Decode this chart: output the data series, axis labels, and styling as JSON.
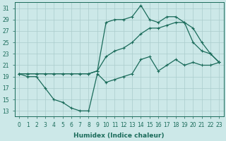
{
  "xlabel": "Humidex (Indice chaleur)",
  "background_color": "#cce8e8",
  "grid_color": "#aacccc",
  "line_color": "#1a6b5a",
  "xlim": [
    -0.5,
    23.5
  ],
  "ylim": [
    12,
    32
  ],
  "xticks": [
    0,
    1,
    2,
    3,
    4,
    5,
    6,
    7,
    8,
    9,
    10,
    11,
    12,
    13,
    14,
    15,
    16,
    17,
    18,
    19,
    20,
    21,
    22,
    23
  ],
  "yticks": [
    13,
    15,
    17,
    19,
    21,
    23,
    25,
    27,
    29,
    31
  ],
  "line1_x": [
    0,
    1,
    2,
    3,
    4,
    5,
    6,
    7,
    8,
    9,
    10,
    11,
    12,
    13,
    14,
    15,
    16,
    17,
    18,
    19,
    20,
    21,
    22,
    23
  ],
  "line1_y": [
    19.5,
    19.0,
    19.0,
    17.0,
    15.0,
    14.5,
    13.5,
    13.0,
    13.0,
    19.5,
    18.0,
    18.5,
    19.0,
    19.5,
    22.0,
    22.5,
    20.0,
    21.0,
    22.0,
    21.0,
    21.5,
    21.0,
    21.0,
    21.5
  ],
  "line2_x": [
    0,
    1,
    2,
    3,
    4,
    5,
    6,
    7,
    8,
    9,
    10,
    11,
    12,
    13,
    14,
    15,
    16,
    17,
    18,
    19,
    20,
    21,
    22,
    23
  ],
  "line2_y": [
    19.5,
    19.5,
    19.5,
    19.5,
    19.5,
    19.5,
    19.5,
    19.5,
    19.5,
    20.0,
    22.5,
    23.5,
    24.0,
    25.0,
    26.5,
    27.5,
    27.5,
    28.0,
    28.5,
    28.5,
    27.5,
    25.0,
    23.0,
    21.5
  ],
  "line3_x": [
    0,
    1,
    2,
    3,
    4,
    5,
    6,
    7,
    8,
    9,
    10,
    11,
    12,
    13,
    14,
    15,
    16,
    17,
    18,
    19,
    20,
    21,
    22,
    23
  ],
  "line3_y": [
    19.5,
    19.5,
    19.5,
    19.5,
    19.5,
    19.5,
    19.5,
    19.5,
    19.5,
    20.0,
    28.5,
    29.0,
    29.0,
    29.5,
    31.5,
    29.0,
    28.5,
    29.5,
    29.5,
    28.5,
    25.0,
    23.5,
    23.0,
    21.5
  ],
  "xlabel_fontsize": 6.5,
  "tick_fontsize": 5.5,
  "linewidth": 0.9,
  "markersize": 2.5
}
